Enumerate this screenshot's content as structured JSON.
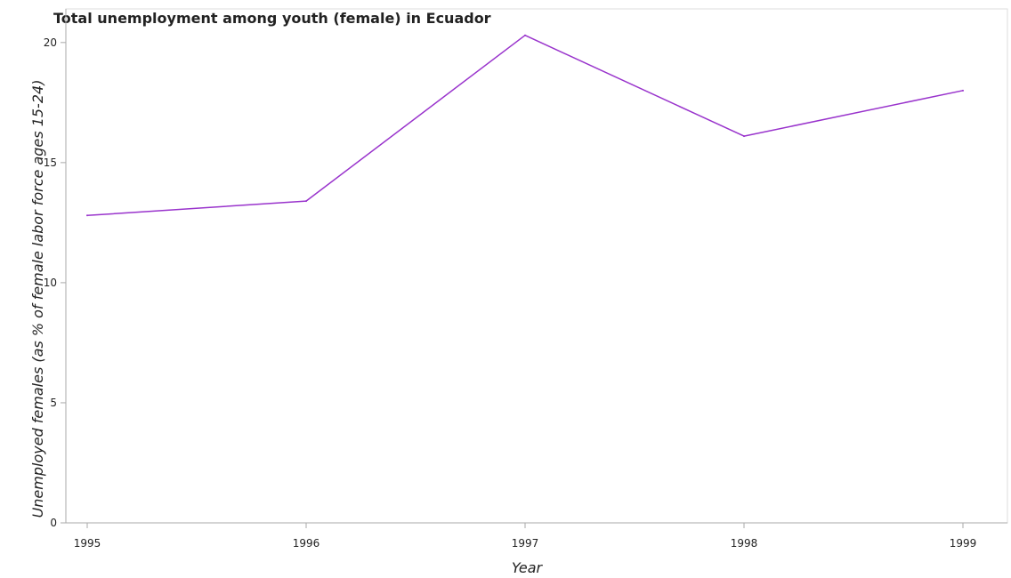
{
  "chart_data": {
    "type": "line",
    "title": "Total unemployment among youth (female) in Ecuador",
    "xlabel": "Year",
    "ylabel": "Unemployed females (as % of female labor force ages 15-24)",
    "categories": [
      "1995",
      "1996",
      "1997",
      "1998",
      "1999"
    ],
    "series": [
      {
        "values": [
          12.8,
          13.4,
          20.3,
          16.1,
          18.0
        ]
      }
    ],
    "yticks": [
      "0",
      "5",
      "10",
      "15",
      "20"
    ],
    "ylim": [
      0,
      21.4
    ],
    "grid": false,
    "line_color": "#9933cc",
    "axis_color": "#aaaaaa"
  }
}
